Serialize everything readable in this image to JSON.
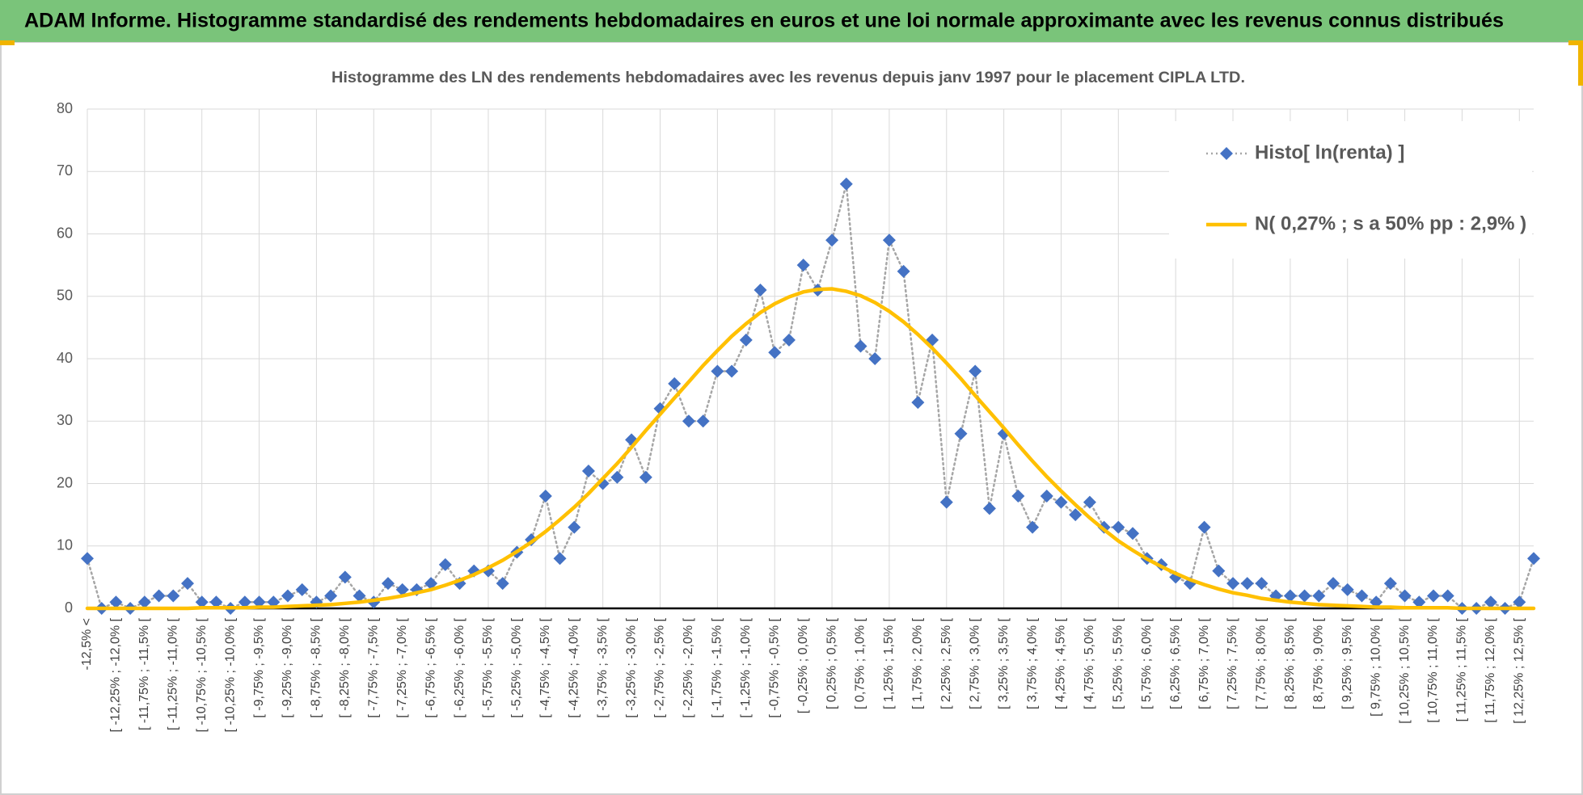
{
  "chart_data": {
    "type": "line",
    "title": "ADAM Informe. Histogramme standardisé des rendements hebdomadaires en euros et une loi normale approximante avec les revenus connus distribués",
    "subtitle": "Histogramme des LN des rendements hebdomadaires avec les revenus depuis janv 1997 pour le placement CIPLA LTD.",
    "categories": [
      "-12,5% <",
      null,
      "[ -12,25% ; -12,0% [",
      null,
      "[ -11,75% ; -11,5% [",
      null,
      "[ -11,25% ; -11,0% [",
      null,
      "[ -10,75% ; -10,5% [",
      null,
      "[ -10,25% ; -10,0% [",
      null,
      "[ -9,75% ; -9,5% [",
      null,
      "[ -9,25% ; -9,0% [",
      null,
      "[ -8,75% ; -8,5% [",
      null,
      "[ -8,25% ; -8,0% [",
      null,
      "[ -7,75% ; -7,5% [",
      null,
      "[ -7,25% ; -7,0% [",
      null,
      "[ -6,75% ; -6,5% [",
      null,
      "[ -6,25% ; -6,0% [",
      null,
      "[ -5,75% ; -5,5% [",
      null,
      "[ -5,25% ; -5,0% [",
      null,
      "[ -4,75% ; -4,5% [",
      null,
      "[ -4,25% ; -4,0% [",
      null,
      "[ -3,75% ; -3,5% [",
      null,
      "[ -3,25% ; -3,0% [",
      null,
      "[ -2,75% ; -2,5% [",
      null,
      "[ -2,25% ; -2,0% [",
      null,
      "[ -1,75% ; -1,5% [",
      null,
      "[ -1,25% ; -1,0% [",
      null,
      "[ -0,75% ; -0,5% [",
      null,
      "[ -0,25% ; 0,0% [",
      null,
      "[ 0,25% ; 0,5% [",
      null,
      "[ 0,75% ; 1,0% [",
      null,
      "[ 1,25% ; 1,5% [",
      null,
      "[ 1,75% ; 2,0% [",
      null,
      "[ 2,25% ; 2,5% [",
      null,
      "[ 2,75% ; 3,0% [",
      null,
      "[ 3,25% ; 3,5% [",
      null,
      "[ 3,75% ; 4,0% [",
      null,
      "[ 4,25% ; 4,5% [",
      null,
      "[ 4,75% ; 5,0% [",
      null,
      "[ 5,25% ; 5,5% [",
      null,
      "[ 5,75% ; 6,0% [",
      null,
      "[ 6,25% ; 6,5% [",
      null,
      "[ 6,75% ; 7,0% [",
      null,
      "[ 7,25% ; 7,5% [",
      null,
      "[ 7,75% ; 8,0% [",
      null,
      "[ 8,25% ; 8,5% [",
      null,
      "[ 8,75% ; 9,0% [",
      null,
      "[ 9,25% ; 9,5% [",
      null,
      "[ 9,75% ; 10,0% [",
      null,
      "[ 10,25% ; 10,5% [",
      null,
      "[ 10,75% ; 11,0% [",
      null,
      "[ 11,25% ; 11,5% [",
      null,
      "[ 11,75% ; 12,0% [",
      null,
      "[ 12,25% ; 12,5% [",
      null
    ],
    "series": [
      {
        "name": "Histo[ ln(renta) ]",
        "color": "#4472c4",
        "line_color": "#a6a6a6",
        "values": [
          8,
          0,
          1,
          0,
          1,
          2,
          2,
          4,
          1,
          1,
          0,
          1,
          1,
          1,
          2,
          3,
          1,
          2,
          5,
          2,
          1,
          4,
          3,
          3,
          4,
          7,
          4,
          6,
          6,
          4,
          9,
          11,
          18,
          8,
          13,
          22,
          20,
          21,
          27,
          21,
          32,
          36,
          30,
          30,
          38,
          38,
          43,
          51,
          41,
          43,
          55,
          51,
          59,
          68,
          42,
          40,
          59,
          54,
          33,
          43,
          17,
          28,
          38,
          16,
          28,
          18,
          13,
          18,
          17,
          15,
          17,
          13,
          13,
          12,
          8,
          7,
          5,
          4,
          13,
          6,
          4,
          4,
          4,
          2,
          2,
          2,
          2,
          4,
          3,
          2,
          1,
          4,
          2,
          1,
          2,
          2,
          0,
          0,
          1,
          0,
          1,
          8
        ]
      },
      {
        "name": "N( 0,27% ; s a 50% pp : 2,9% )",
        "color": "#ffc000",
        "values": [
          0,
          0,
          0,
          0,
          0,
          0,
          0,
          0,
          0.1,
          0.1,
          0.1,
          0.1,
          0.2,
          0.2,
          0.3,
          0.4,
          0.5,
          0.6,
          0.8,
          1.0,
          1.3,
          1.6,
          2.0,
          2.5,
          3.0,
          3.7,
          4.5,
          5.4,
          6.5,
          7.7,
          9.1,
          10.6,
          12.3,
          14.2,
          16.2,
          18.4,
          20.8,
          23.2,
          25.8,
          28.5,
          31.1,
          33.7,
          36.3,
          38.9,
          41.3,
          43.6,
          45.6,
          47.4,
          48.8,
          49.9,
          50.7,
          51.1,
          51.2,
          50.8,
          50.1,
          49.0,
          47.6,
          45.9,
          43.9,
          41.7,
          39.3,
          36.8,
          34.1,
          31.5,
          28.9,
          26.2,
          23.6,
          21.1,
          18.8,
          16.6,
          14.5,
          12.6,
          10.8,
          9.3,
          7.9,
          6.7,
          5.6,
          4.6,
          3.8,
          3.1,
          2.5,
          2.1,
          1.6,
          1.3,
          1.0,
          0.8,
          0.6,
          0.5,
          0.4,
          0.3,
          0.2,
          0.2,
          0.1,
          0.1,
          0.1,
          0.1,
          0,
          0,
          0,
          0,
          0,
          0
        ]
      }
    ],
    "ylim": [
      0,
      80
    ],
    "yticks": [
      0,
      10,
      20,
      30,
      40,
      50,
      60,
      70,
      80
    ],
    "grid": true,
    "legend": "upper right"
  }
}
